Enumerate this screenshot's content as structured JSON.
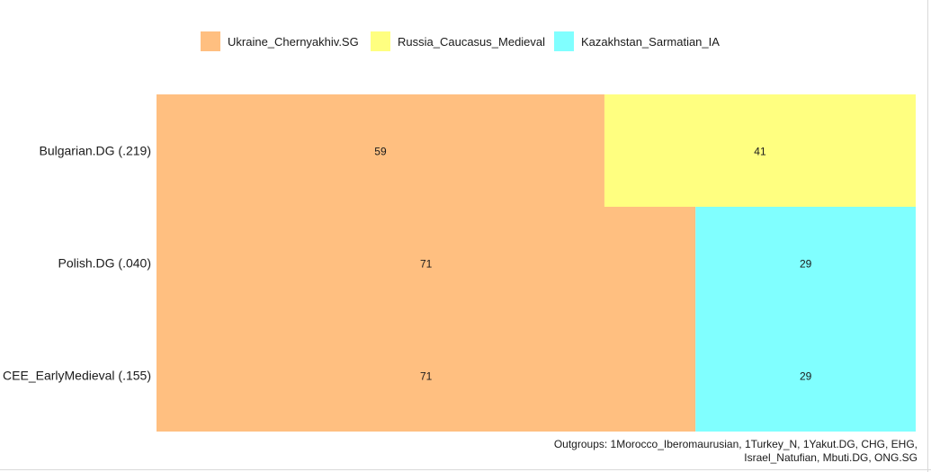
{
  "chart_data": {
    "type": "bar",
    "orientation": "horizontal",
    "stacked": true,
    "normalized_total": 100,
    "categories": [
      "Bulgarian.DG (.219)",
      "Polish.DG (.040)",
      "CEE_EarlyMedieval (.155)"
    ],
    "series": [
      {
        "name": "Ukraine_Chernyakhiv.SG",
        "color": "#FFBF80",
        "values": [
          59,
          71,
          71
        ]
      },
      {
        "name": "Russia_Caucasus_Medieval",
        "color": "#FFFF80",
        "values": [
          41,
          0,
          0
        ]
      },
      {
        "name": "Kazakhstan_Sarmatian_IA",
        "color": "#80FFFF",
        "values": [
          0,
          29,
          29
        ]
      }
    ],
    "data_labels": true,
    "legend_position": "top",
    "grid": false,
    "caption_lines": [
      "Outgroups: 1Morocco_Iberomaurusian, 1Turkey_N, 1Yakut.DG, CHG, EHG,",
      "Israel_Natufian, Mbuti.DG, ONG.SG"
    ]
  }
}
